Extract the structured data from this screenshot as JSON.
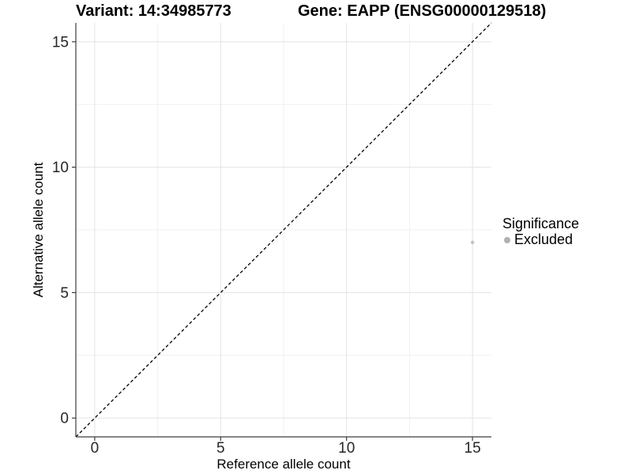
{
  "chart_data": {
    "type": "scatter",
    "title_left": "Variant: 14:34985773",
    "title_right": "Gene: EAPP (ENSG00000129518)",
    "xlabel": "Reference allele count",
    "ylabel": "Alternative allele count",
    "xlim": [
      -0.75,
      15.75
    ],
    "ylim": [
      -0.75,
      15.75
    ],
    "x_ticks": [
      0,
      5,
      10,
      15
    ],
    "y_ticks": [
      0,
      5,
      10,
      15
    ],
    "x_minor_ticks": [
      2.5,
      7.5,
      12.5
    ],
    "y_minor_ticks": [
      2.5,
      7.5,
      12.5
    ],
    "grid": "major and minor gridlines on white panel",
    "series": [
      {
        "name": "Excluded",
        "color": "#c1c1c1",
        "points": [
          {
            "x": 15,
            "y": 7
          }
        ]
      }
    ],
    "reference_line": {
      "type": "abline",
      "slope": 1,
      "intercept": 0,
      "linetype": "dashed",
      "color": "#000000"
    },
    "legend": {
      "title": "Significance",
      "position": "right",
      "entries": [
        {
          "label": "Excluded",
          "swatch_color": "#b1b1b1"
        }
      ]
    }
  },
  "colors": {
    "background": "#ffffff",
    "grid_major": "#e3e3e3",
    "grid_minor": "#f0f0f0",
    "axis_line": "#3e3e3e",
    "tick_text": "#262626",
    "title_text": "#000000",
    "point": "#c1c1c1",
    "legend_swatch": "#b1b1b1",
    "dashed_line": "#000000"
  }
}
